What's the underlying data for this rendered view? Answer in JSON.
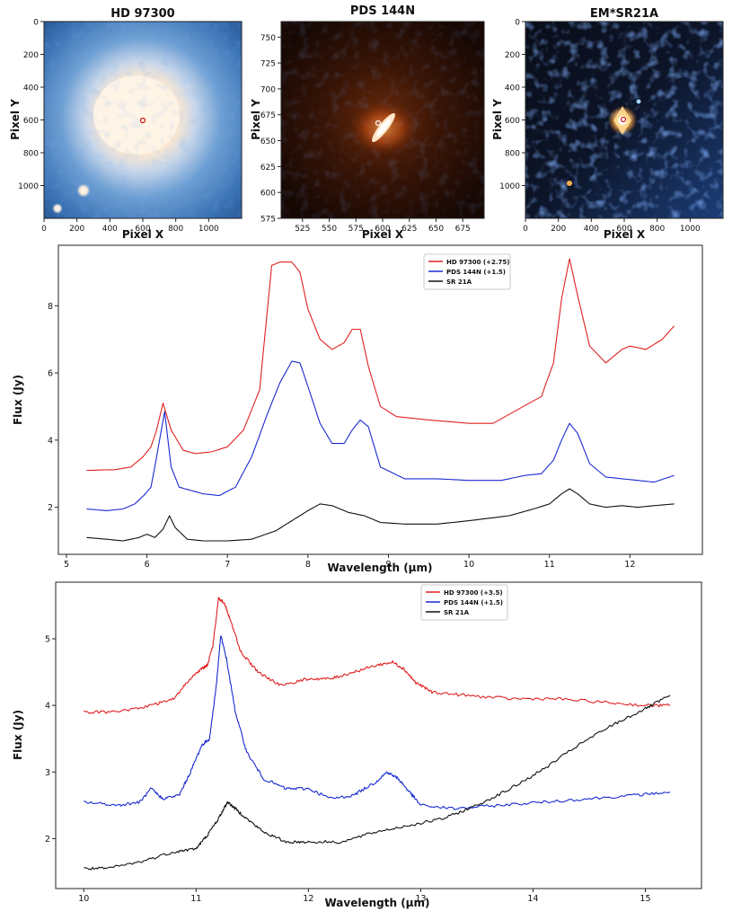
{
  "chart_data": [
    {
      "type": "image",
      "title": "HD 97300",
      "xlabel": "Pixel X",
      "ylabel": "Pixel Y",
      "xlim": [
        0,
        1200
      ],
      "ylim": [
        1200,
        0
      ],
      "xticks": [
        0,
        200,
        400,
        600,
        800,
        1000
      ],
      "yticks": [
        0,
        200,
        400,
        600,
        800,
        1000
      ],
      "marker": {
        "x": 600,
        "y": 600
      },
      "colormap": "blue-white"
    },
    {
      "type": "image",
      "title": "PDS 144N",
      "xlabel": "Pixel X",
      "ylabel": "Pixel Y",
      "xlim": [
        505,
        695
      ],
      "ylim": [
        575,
        765
      ],
      "xticks": [
        525,
        550,
        575,
        600,
        625,
        650,
        675
      ],
      "yticks": [
        575,
        600,
        625,
        650,
        675,
        700,
        725,
        750
      ],
      "marker": {
        "x": 598,
        "y": 665
      },
      "colormap": "black-orange-white"
    },
    {
      "type": "image",
      "title": "EM*SR21A",
      "xlabel": "Pixel X",
      "ylabel": "Pixel Y",
      "xlim": [
        0,
        1200
      ],
      "ylim": [
        1200,
        0
      ],
      "xticks": [
        0,
        200,
        400,
        600,
        800,
        1000
      ],
      "yticks": [
        0,
        200,
        400,
        600,
        800,
        1000
      ],
      "marker": {
        "x": 600,
        "y": 600
      },
      "colormap": "black-blue-orange"
    },
    {
      "type": "line",
      "xlabel": "Wavelength (μm)",
      "ylabel": "Flux (Jy)",
      "xlim": [
        4.9,
        12.9
      ],
      "ylim": [
        0.6,
        9.8
      ],
      "xticks": [
        5,
        6,
        7,
        8,
        9,
        10,
        11,
        12
      ],
      "yticks": [
        2,
        4,
        6,
        8
      ],
      "legend": "top-center",
      "series": [
        {
          "name": "HD 97300 (+2.75)",
          "color": "#e02020",
          "x": [
            5.25,
            5.6,
            5.8,
            5.95,
            6.05,
            6.12,
            6.2,
            6.3,
            6.45,
            6.6,
            6.8,
            7.0,
            7.2,
            7.4,
            7.55,
            7.65,
            7.8,
            7.9,
            8.0,
            8.15,
            8.3,
            8.45,
            8.55,
            8.65,
            8.75,
            8.9,
            9.1,
            9.5,
            10.0,
            10.3,
            10.6,
            10.9,
            11.05,
            11.15,
            11.25,
            11.35,
            11.5,
            11.7,
            11.9,
            12.0,
            12.2,
            12.4,
            12.55
          ],
          "y": [
            3.1,
            3.12,
            3.2,
            3.5,
            3.8,
            4.3,
            5.1,
            4.3,
            3.7,
            3.6,
            3.65,
            3.8,
            4.3,
            5.5,
            9.2,
            9.3,
            9.3,
            9.0,
            7.9,
            7.0,
            6.7,
            6.9,
            7.3,
            7.3,
            6.2,
            5.0,
            4.7,
            4.6,
            4.5,
            4.5,
            4.9,
            5.3,
            6.3,
            8.2,
            9.4,
            8.3,
            6.8,
            6.3,
            6.7,
            6.8,
            6.7,
            7.0,
            7.4
          ]
        },
        {
          "name": "PDS 144N (+1.5)",
          "color": "#1a2ad0",
          "x": [
            5.25,
            5.5,
            5.7,
            5.85,
            5.98,
            6.05,
            6.12,
            6.22,
            6.3,
            6.4,
            6.55,
            6.7,
            6.9,
            7.1,
            7.3,
            7.5,
            7.65,
            7.8,
            7.9,
            8.0,
            8.15,
            8.3,
            8.45,
            8.55,
            8.65,
            8.75,
            8.9,
            9.2,
            9.6,
            10.0,
            10.4,
            10.7,
            10.9,
            11.05,
            11.15,
            11.25,
            11.35,
            11.5,
            11.7,
            11.9,
            12.1,
            12.3,
            12.55
          ],
          "y": [
            1.95,
            1.9,
            1.95,
            2.1,
            2.4,
            2.6,
            3.5,
            4.85,
            3.2,
            2.6,
            2.5,
            2.4,
            2.35,
            2.6,
            3.5,
            4.8,
            5.7,
            6.35,
            6.3,
            5.6,
            4.5,
            3.9,
            3.9,
            4.3,
            4.6,
            4.4,
            3.2,
            2.85,
            2.85,
            2.8,
            2.8,
            2.95,
            3.0,
            3.4,
            4.0,
            4.5,
            4.2,
            3.3,
            2.9,
            2.85,
            2.8,
            2.75,
            2.95
          ]
        },
        {
          "name": "SR 21A",
          "color": "#111111",
          "x": [
            5.25,
            5.5,
            5.7,
            5.9,
            6.0,
            6.1,
            6.2,
            6.28,
            6.35,
            6.5,
            6.7,
            7.0,
            7.3,
            7.6,
            7.8,
            8.0,
            8.15,
            8.3,
            8.5,
            8.7,
            8.9,
            9.2,
            9.6,
            10.0,
            10.5,
            10.8,
            11.0,
            11.15,
            11.25,
            11.35,
            11.5,
            11.7,
            11.9,
            12.1,
            12.3,
            12.55
          ],
          "y": [
            1.1,
            1.05,
            1.0,
            1.1,
            1.2,
            1.1,
            1.35,
            1.75,
            1.4,
            1.05,
            1.0,
            1.0,
            1.05,
            1.3,
            1.6,
            1.9,
            2.1,
            2.05,
            1.85,
            1.75,
            1.55,
            1.5,
            1.5,
            1.6,
            1.75,
            1.95,
            2.1,
            2.4,
            2.55,
            2.4,
            2.1,
            2.0,
            2.05,
            2.0,
            2.05,
            2.1
          ]
        }
      ]
    },
    {
      "type": "line",
      "xlabel": "Wavelength (μm)",
      "ylabel": "Flux (Jy)",
      "xlim": [
        9.75,
        15.5
      ],
      "ylim": [
        1.25,
        5.85
      ],
      "xticks": [
        10,
        11,
        12,
        13,
        14,
        15
      ],
      "yticks": [
        2,
        3,
        4,
        5
      ],
      "legend": "top-center",
      "series": [
        {
          "name": "HD 97300 (+3.5)",
          "color": "#e02020",
          "x": [
            10.0,
            10.3,
            10.6,
            10.8,
            10.95,
            11.05,
            11.1,
            11.15,
            11.2,
            11.25,
            11.3,
            11.4,
            11.55,
            11.75,
            12.0,
            12.2,
            12.4,
            12.6,
            12.75,
            12.85,
            12.95,
            13.1,
            13.4,
            13.8,
            14.2,
            14.6,
            15.0,
            15.22
          ],
          "y": [
            3.9,
            3.9,
            4.0,
            4.1,
            4.4,
            4.55,
            4.6,
            4.9,
            5.6,
            5.55,
            5.3,
            4.8,
            4.5,
            4.3,
            4.4,
            4.4,
            4.5,
            4.6,
            4.65,
            4.55,
            4.35,
            4.2,
            4.15,
            4.1,
            4.1,
            4.05,
            4.0,
            4.0
          ]
        },
        {
          "name": "PDS 144N (+1.5)",
          "color": "#1a2ad0",
          "x": [
            10.0,
            10.3,
            10.5,
            10.6,
            10.7,
            10.85,
            10.95,
            11.05,
            11.12,
            11.18,
            11.22,
            11.27,
            11.35,
            11.45,
            11.6,
            11.8,
            12.0,
            12.2,
            12.4,
            12.6,
            12.7,
            12.8,
            12.9,
            13.0,
            13.3,
            13.7,
            14.1,
            14.5,
            14.9,
            15.22
          ],
          "y": [
            2.55,
            2.5,
            2.55,
            2.75,
            2.6,
            2.65,
            3.0,
            3.4,
            3.5,
            4.3,
            5.05,
            4.7,
            3.9,
            3.3,
            2.9,
            2.75,
            2.75,
            2.6,
            2.65,
            2.85,
            3.0,
            2.9,
            2.7,
            2.5,
            2.45,
            2.5,
            2.55,
            2.6,
            2.65,
            2.7
          ]
        },
        {
          "name": "SR 21A",
          "color": "#111111",
          "x": [
            10.0,
            10.2,
            10.5,
            10.8,
            11.0,
            11.1,
            11.2,
            11.28,
            11.35,
            11.45,
            11.6,
            11.8,
            12.0,
            12.3,
            12.6,
            12.9,
            13.2,
            13.5,
            13.8,
            14.1,
            14.4,
            14.7,
            15.0,
            15.22
          ],
          "y": [
            1.55,
            1.55,
            1.65,
            1.8,
            1.85,
            2.05,
            2.3,
            2.55,
            2.45,
            2.3,
            2.1,
            1.95,
            1.95,
            1.95,
            2.1,
            2.2,
            2.3,
            2.5,
            2.75,
            3.05,
            3.4,
            3.7,
            3.95,
            4.15
          ]
        }
      ]
    }
  ]
}
